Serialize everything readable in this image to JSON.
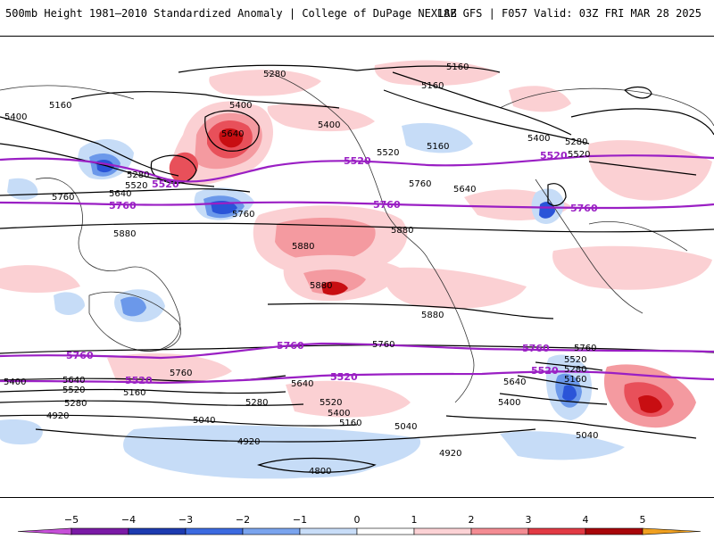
{
  "header": {
    "title_left": "500mb Height 1981–2010 Standardized Anomaly | College of DuPage NEXLAB",
    "title_right": "18Z GFS | F057 Valid: 03Z FRI MAR 28 2025"
  },
  "map": {
    "contour_labels_black": [
      {
        "id": "c5160a",
        "text": "5160"
      },
      {
        "id": "c5280a",
        "text": "5280"
      },
      {
        "id": "c5400a",
        "text": "5400"
      },
      {
        "id": "c5160b",
        "text": "5160"
      },
      {
        "id": "c5400b",
        "text": "5400"
      },
      {
        "id": "c5160c",
        "text": "5160"
      },
      {
        "id": "c5400c",
        "text": "5400"
      },
      {
        "id": "c5640a",
        "text": "5640"
      },
      {
        "id": "c5520a",
        "text": "5520"
      },
      {
        "id": "c5160d",
        "text": "5160"
      },
      {
        "id": "c5400d",
        "text": "5400"
      },
      {
        "id": "c5280b",
        "text": "5280"
      },
      {
        "id": "c5520b",
        "text": "5520"
      },
      {
        "id": "c5280c",
        "text": "5280"
      },
      {
        "id": "c5520c",
        "text": "5520"
      },
      {
        "id": "c5640b",
        "text": "5640"
      },
      {
        "id": "c5760a",
        "text": "5760"
      },
      {
        "id": "c5760b",
        "text": "5760"
      },
      {
        "id": "c5760c",
        "text": "5760"
      },
      {
        "id": "c5640c",
        "text": "5640"
      },
      {
        "id": "c5880a",
        "text": "5880"
      },
      {
        "id": "c5880b",
        "text": "5880"
      },
      {
        "id": "c5880c",
        "text": "5880"
      },
      {
        "id": "c5880d",
        "text": "5880"
      },
      {
        "id": "c5880e",
        "text": "5880"
      },
      {
        "id": "c5760d",
        "text": "5760"
      },
      {
        "id": "c5760e",
        "text": "5760"
      },
      {
        "id": "c5760f",
        "text": "5760"
      },
      {
        "id": "c5400e",
        "text": "5400"
      },
      {
        "id": "c5640d",
        "text": "5640"
      },
      {
        "id": "c5520d",
        "text": "5520"
      },
      {
        "id": "c5280d",
        "text": "5280"
      },
      {
        "id": "c5160e",
        "text": "5160"
      },
      {
        "id": "c4920a",
        "text": "4920"
      },
      {
        "id": "c5280e",
        "text": "5280"
      },
      {
        "id": "c5040a",
        "text": "5040"
      },
      {
        "id": "c5640e",
        "text": "5640"
      },
      {
        "id": "c5520e",
        "text": "5520"
      },
      {
        "id": "c5400f",
        "text": "5400"
      },
      {
        "id": "c5160f",
        "text": "5160"
      },
      {
        "id": "c5040b",
        "text": "5040"
      },
      {
        "id": "c4920b",
        "text": "4920"
      },
      {
        "id": "c4800a",
        "text": "4800"
      },
      {
        "id": "c4920c",
        "text": "4920"
      },
      {
        "id": "c5640f",
        "text": "5640"
      },
      {
        "id": "c5400g",
        "text": "5400"
      },
      {
        "id": "c5520f",
        "text": "5520"
      },
      {
        "id": "c5280f",
        "text": "5280"
      },
      {
        "id": "c5160g",
        "text": "5160"
      },
      {
        "id": "c5040c",
        "text": "5040"
      }
    ],
    "contour_labels_purple": [
      {
        "id": "p5520a",
        "text": "5520"
      },
      {
        "id": "p5520b",
        "text": "5520"
      },
      {
        "id": "p5520c",
        "text": "5520"
      },
      {
        "id": "p5760a",
        "text": "5760"
      },
      {
        "id": "p5760b",
        "text": "5760"
      },
      {
        "id": "p5760c",
        "text": "5760"
      },
      {
        "id": "p5760d",
        "text": "5760"
      },
      {
        "id": "p5760e",
        "text": "5760"
      },
      {
        "id": "p5760f",
        "text": "5760"
      },
      {
        "id": "p5520d",
        "text": "5520"
      },
      {
        "id": "p5520e",
        "text": "5520"
      },
      {
        "id": "p5520f",
        "text": "5520"
      }
    ],
    "colors": {
      "contour_black": "#000000",
      "contour_purple": "#9a1fc4",
      "anom_pos_1": "#fbd0d3",
      "anom_pos_2": "#f49aa0",
      "anom_pos_3": "#e8505a",
      "anom_pos_4": "#c80e12",
      "anom_neg_1": "#c6dcf7",
      "anom_neg_2": "#6b98ea",
      "anom_neg_3": "#2a54d8",
      "anom_neg_4": "#1a2ea8",
      "land_border": "#333333"
    }
  },
  "colorbar": {
    "ticks": [
      "−5",
      "−4",
      "−3",
      "−2",
      "−1",
      "0",
      "1",
      "2",
      "3",
      "4",
      "5"
    ],
    "colors": [
      "#c64fd8",
      "#7a1aa6",
      "#1d3bb0",
      "#3c6ae0",
      "#7aa4ee",
      "#c8ddf8",
      "#ffffff",
      "#fcd2d5",
      "#f48c93",
      "#e23a44",
      "#a8060a",
      "#f0a020"
    ]
  }
}
